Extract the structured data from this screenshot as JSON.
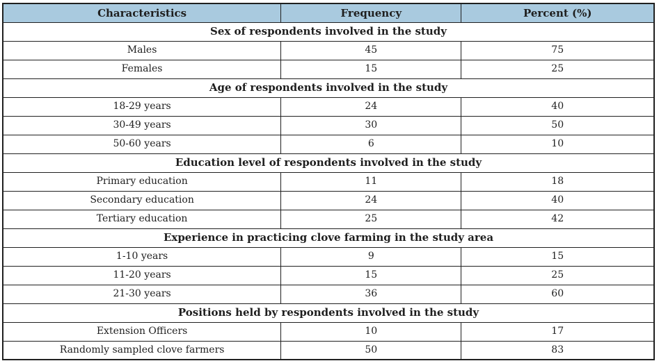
{
  "table": {
    "headers": [
      "Characteristics",
      "Frequency",
      "Percent (%)"
    ],
    "sections": [
      {
        "title": "Sex of respondents involved in the study",
        "rows": [
          [
            "Males",
            "45",
            "75"
          ],
          [
            "Females",
            "15",
            "25"
          ]
        ]
      },
      {
        "title": "Age of respondents involved in the study",
        "rows": [
          [
            "18-29 years",
            "24",
            "40"
          ],
          [
            "30-49 years",
            "30",
            "50"
          ],
          [
            "50-60 years",
            "6",
            "10"
          ]
        ]
      },
      {
        "title": "Education level of respondents involved in the study",
        "rows": [
          [
            "Primary education",
            "11",
            "18"
          ],
          [
            "Secondary education",
            "24",
            "40"
          ],
          [
            "Tertiary education",
            "25",
            "42"
          ]
        ]
      },
      {
        "title": "Experience in practicing clove farming in the study area",
        "rows": [
          [
            "1-10 years",
            "9",
            "15"
          ],
          [
            "11-20 years",
            "15",
            "25"
          ],
          [
            "21-30 years",
            "36",
            "60"
          ]
        ]
      },
      {
        "title": "Positions held by respondents involved in the study",
        "rows": [
          [
            "Extension Officers",
            "10",
            "17"
          ],
          [
            "Randomly sampled clove farmers",
            "50",
            "83"
          ]
        ]
      }
    ],
    "colors": {
      "header_bg": "#a9cadf",
      "border": "#1f1f1f",
      "text": "#1f1f1f"
    }
  }
}
